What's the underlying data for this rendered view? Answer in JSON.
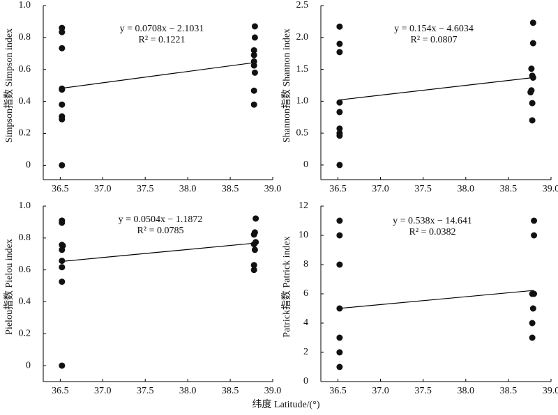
{
  "xlabel": "纬度 Latitude/(°)",
  "chart_data": [
    {
      "type": "scatter",
      "ylabel": "Simpson指数 Simpson index",
      "equation": "y = 0.0708x − 2.1031",
      "r2": "R² = 0.1221",
      "trend": {
        "slope": 0.0708,
        "intercept": -2.1031
      },
      "x": [
        36.52,
        36.52,
        36.52,
        36.52,
        36.52,
        36.52,
        36.52,
        36.52,
        36.52,
        38.79,
        38.79,
        38.78,
        38.78,
        38.78,
        38.78,
        38.79,
        38.78,
        38.78
      ],
      "values": [
        0.86,
        0.834,
        0.733,
        0.48,
        0.474,
        0.38,
        0.306,
        0.288,
        0,
        0.87,
        0.8,
        0.72,
        0.69,
        0.65,
        0.625,
        0.58,
        0.467,
        0.38
      ],
      "xlim": [
        36.3,
        39.0
      ],
      "xticks": [
        36.5,
        {
          "value": 37,
          "label": "37.0"
        },
        37.5,
        {
          "value": 38,
          "label": "38.0"
        },
        38.5,
        {
          "value": 39,
          "label": "39.0"
        }
      ],
      "ylim": [
        -0.09,
        1.0
      ],
      "yticks": [
        0,
        0.2,
        0.4,
        0.6,
        0.8,
        {
          "value": 1,
          "label": "1.0"
        }
      ]
    },
    {
      "type": "scatter",
      "ylabel": "Shannon指数 Shannon index",
      "equation": "y = 0.154x − 4.6034",
      "r2": "R² = 0.0807",
      "trend": {
        "slope": 0.154,
        "intercept": -4.6034
      },
      "x": [
        36.52,
        36.52,
        36.52,
        36.52,
        36.52,
        36.52,
        36.52,
        36.52,
        36.52,
        38.79,
        38.79,
        38.77,
        38.78,
        38.79,
        38.77,
        38.76,
        38.78,
        38.78
      ],
      "values": [
        2.17,
        1.9,
        1.77,
        0.98,
        0.83,
        0.57,
        0.5,
        0.46,
        0,
        2.23,
        1.91,
        1.51,
        1.4,
        1.37,
        1.17,
        1.14,
        0.97,
        0.7
      ],
      "xlim": [
        36.3,
        39.0
      ],
      "xticks": [
        36.5,
        {
          "value": 37,
          "label": "37.0"
        },
        37.5,
        {
          "value": 38,
          "label": "38.0"
        },
        38.5,
        {
          "value": 39,
          "label": "39.0"
        }
      ],
      "ylim": [
        -0.23,
        2.5
      ],
      "yticks": [
        0,
        0.5,
        {
          "value": 1,
          "label": "1.0"
        },
        1.5,
        {
          "value": 2,
          "label": "2.0"
        },
        2.5
      ]
    },
    {
      "type": "scatter",
      "ylabel": "Pielou指数 Pielou index",
      "equation": "y = 0.0504x − 1.1872",
      "r2": "R² = 0.0785",
      "trend": {
        "slope": 0.0504,
        "intercept": -1.1872
      },
      "x": [
        36.52,
        36.52,
        36.52,
        36.53,
        36.52,
        36.52,
        36.52,
        36.52,
        36.52,
        38.8,
        38.79,
        38.78,
        38.8,
        38.78,
        38.79,
        38.78,
        38.78
      ],
      "values": [
        0.909,
        0.896,
        0.757,
        0.752,
        0.726,
        0.657,
        0.617,
        0.526,
        0,
        0.922,
        0.835,
        0.822,
        0.774,
        0.761,
        0.726,
        0.63,
        0.6
      ],
      "xlim": [
        36.3,
        39.0
      ],
      "xticks": [
        36.5,
        {
          "value": 37,
          "label": "37.0"
        },
        37.5,
        {
          "value": 38,
          "label": "38.0"
        },
        38.5,
        {
          "value": 39,
          "label": "39.0"
        }
      ],
      "ylim": [
        -0.1,
        1.0
      ],
      "yticks": [
        0,
        0.2,
        0.4,
        0.6,
        0.8,
        {
          "value": 1,
          "label": "1.0"
        }
      ]
    },
    {
      "type": "scatter",
      "ylabel": "Patrick指数 Patrick index",
      "equation": "y = 0.538x − 14.641",
      "r2": "R² = 0.0382",
      "trend": {
        "slope": 0.538,
        "intercept": -14.641
      },
      "x": [
        36.52,
        36.52,
        36.52,
        36.52,
        36.52,
        36.52,
        36.52,
        38.8,
        38.8,
        38.78,
        38.8,
        38.79,
        38.78,
        38.78
      ],
      "values": [
        11,
        10,
        8,
        5,
        3,
        2,
        1,
        11,
        10,
        6,
        6,
        5,
        4,
        3
      ],
      "xlim": [
        36.3,
        39.0
      ],
      "xticks": [
        36.5,
        {
          "value": 37,
          "label": "37.0"
        },
        37.5,
        {
          "value": 38,
          "label": "38.0"
        },
        38.5,
        {
          "value": 39,
          "label": "39.0"
        }
      ],
      "ylim": [
        0,
        12
      ],
      "yticks": [
        0,
        2,
        4,
        6,
        8,
        10,
        12
      ]
    }
  ]
}
